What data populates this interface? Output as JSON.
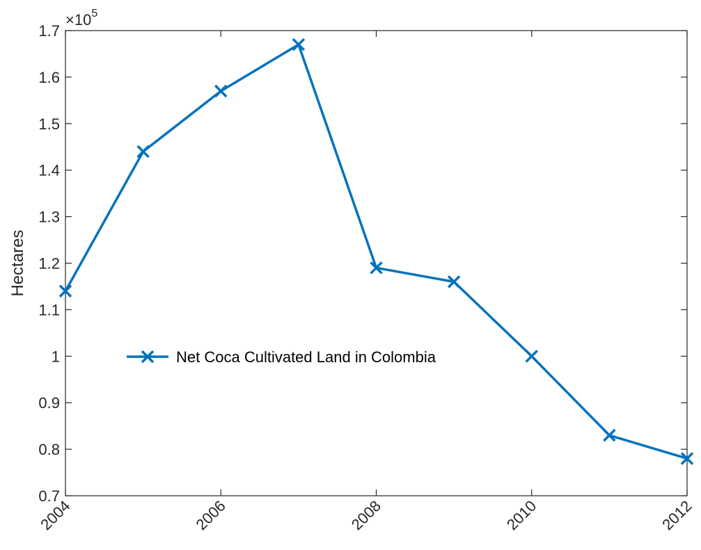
{
  "chart_data": {
    "type": "line",
    "title": "",
    "xlabel": "",
    "ylabel": "Hectares",
    "y_multiplier_label": "×10",
    "y_multiplier_exponent": "5",
    "x": [
      2004,
      2005,
      2006,
      2007,
      2008,
      2009,
      2010,
      2011,
      2012
    ],
    "series": [
      {
        "name": "Net Coca Cultivated Land in Colombia",
        "values": [
          1.14,
          1.44,
          1.57,
          1.67,
          1.19,
          1.16,
          1.0,
          0.83,
          0.78
        ],
        "color": "#0072BD",
        "marker": "x"
      }
    ],
    "xlim": [
      2004,
      2012
    ],
    "ylim": [
      0.7,
      1.7
    ],
    "x_ticks": [
      "2004",
      "2006",
      "2008",
      "2010",
      "2012"
    ],
    "y_ticks": [
      "0.7",
      "0.8",
      "0.9",
      "1",
      "1.1",
      "1.2",
      "1.3",
      "1.4",
      "1.5",
      "1.6",
      "1.7"
    ],
    "grid": false,
    "legend_position": "center-left"
  }
}
